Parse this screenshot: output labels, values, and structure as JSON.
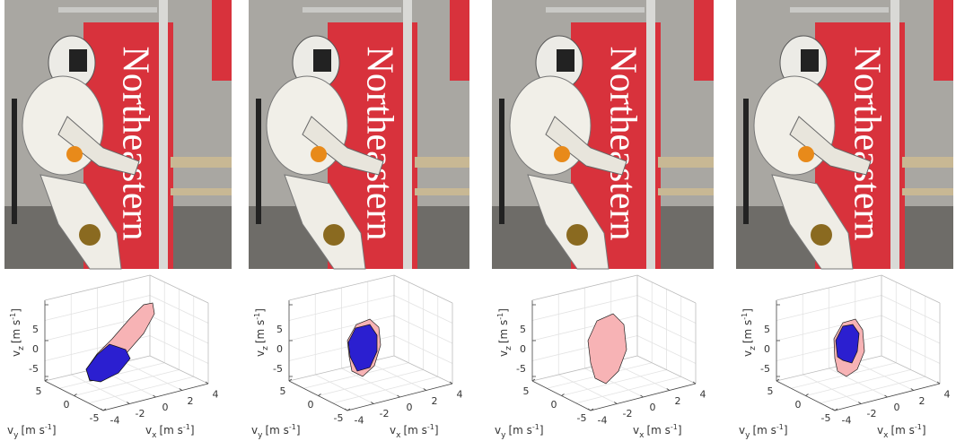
{
  "panels": [
    {
      "photo": {
        "banner_text": "Northeastern"
      },
      "plot": {
        "z_label": {
          "symbol": "v",
          "sub": "z",
          "unit": "[m s",
          "sup": "-1",
          "end": "]"
        },
        "y_label": {
          "symbol": "v",
          "sub": "y",
          "unit": "[m s",
          "sup": "-1",
          "end": "]"
        },
        "x_label": {
          "symbol": "v",
          "sub": "x",
          "unit": "[m s",
          "sup": "-1",
          "end": "]"
        },
        "z_ticks": [
          5,
          0,
          -5
        ],
        "y_ticks": [
          5,
          0,
          -5
        ],
        "x_ticks": [
          -4,
          -2,
          0,
          2,
          4
        ]
      }
    },
    {
      "photo": {
        "banner_text": "Northeastern"
      },
      "plot": {
        "z_label": {
          "symbol": "v",
          "sub": "z",
          "unit": "[m s",
          "sup": "-1",
          "end": "]"
        },
        "y_label": {
          "symbol": "v",
          "sub": "y",
          "unit": "[m s",
          "sup": "-1",
          "end": "]"
        },
        "x_label": {
          "symbol": "v",
          "sub": "x",
          "unit": "[m s",
          "sup": "-1",
          "end": "]"
        },
        "z_ticks": [
          5,
          0,
          -5
        ],
        "y_ticks": [
          5,
          0,
          -5
        ],
        "x_ticks": [
          -4,
          -2,
          0,
          2,
          4
        ]
      }
    },
    {
      "photo": {
        "banner_text": "Northeastern"
      },
      "plot": {
        "z_label": {
          "symbol": "v",
          "sub": "z",
          "unit": "[m s",
          "sup": "-1",
          "end": "]"
        },
        "y_label": {
          "symbol": "v",
          "sub": "y",
          "unit": "[m s",
          "sup": "-1",
          "end": "]"
        },
        "x_label": {
          "symbol": "v",
          "sub": "x",
          "unit": "[m s",
          "sup": "-1",
          "end": "]"
        },
        "z_ticks": [
          5,
          0,
          -5
        ],
        "y_ticks": [
          5,
          0,
          -5
        ],
        "x_ticks": [
          -4,
          -2,
          0,
          2,
          4
        ]
      }
    },
    {
      "photo": {
        "banner_text": "Northeastern"
      },
      "plot": {
        "z_label": {
          "symbol": "v",
          "sub": "z",
          "unit": "[m s",
          "sup": "-1",
          "end": "]"
        },
        "y_label": {
          "symbol": "v",
          "sub": "y",
          "unit": "[m s",
          "sup": "-1",
          "end": "]"
        },
        "x_label": {
          "symbol": "v",
          "sub": "x",
          "unit": "[m s",
          "sup": "-1",
          "end": "]"
        },
        "z_ticks": [
          5,
          0,
          -5
        ],
        "y_ticks": [
          5,
          0,
          -5
        ],
        "x_ticks": [
          -4,
          -2,
          0,
          2,
          4
        ]
      }
    }
  ]
}
